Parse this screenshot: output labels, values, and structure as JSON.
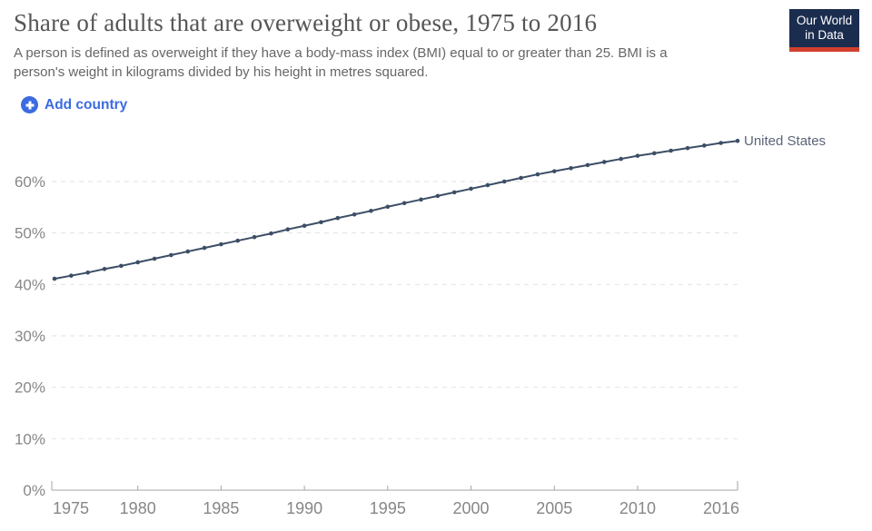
{
  "header": {
    "title": "Share of adults that are overweight or obese, 1975 to 2016",
    "subtitle": "A person is defined as overweight if they have a body-mass index (BMI) equal to or greater than 25. BMI is a person's weight in kilograms divided by his height in metres squared."
  },
  "logo": {
    "line1": "Our World",
    "line2": "in Data",
    "bg_color": "#1b2d4f",
    "accent_color": "#d2402e"
  },
  "controls": {
    "add_country_label": "Add country",
    "accent_color": "#3b6be0"
  },
  "chart_data": {
    "type": "line",
    "title": "Share of adults that are overweight or obese, 1975 to 2016",
    "xlabel": "",
    "ylabel": "",
    "x": [
      1975,
      1976,
      1977,
      1978,
      1979,
      1980,
      1981,
      1982,
      1983,
      1984,
      1985,
      1986,
      1987,
      1988,
      1989,
      1990,
      1991,
      1992,
      1993,
      1994,
      1995,
      1996,
      1997,
      1998,
      1999,
      2000,
      2001,
      2002,
      2003,
      2004,
      2005,
      2006,
      2007,
      2008,
      2009,
      2010,
      2011,
      2012,
      2013,
      2014,
      2015,
      2016
    ],
    "series": [
      {
        "name": "United States",
        "color": "#3C4E66",
        "values": [
          41.1,
          41.7,
          42.3,
          43.0,
          43.6,
          44.3,
          45.0,
          45.7,
          46.4,
          47.1,
          47.8,
          48.5,
          49.2,
          49.9,
          50.7,
          51.4,
          52.1,
          52.9,
          53.6,
          54.3,
          55.1,
          55.8,
          56.5,
          57.2,
          57.9,
          58.6,
          59.3,
          60.0,
          60.7,
          61.4,
          62.0,
          62.6,
          63.2,
          63.8,
          64.4,
          65.0,
          65.5,
          66.0,
          66.5,
          67.0,
          67.5,
          67.9
        ]
      }
    ],
    "xticks": [
      1975,
      1980,
      1985,
      1990,
      1995,
      2000,
      2005,
      2010,
      2016
    ],
    "yticks": [
      0,
      10,
      20,
      30,
      40,
      50,
      60
    ],
    "ytick_suffix": "%",
    "xlim": [
      1975,
      2016
    ],
    "ylim": [
      0,
      70
    ],
    "grid": "horizontal-dashed",
    "legend": "entity label at right end of line",
    "colors": {
      "grid": "#e2e2e2",
      "axis": "#a5a5a5",
      "tick_text": "#878787"
    }
  }
}
